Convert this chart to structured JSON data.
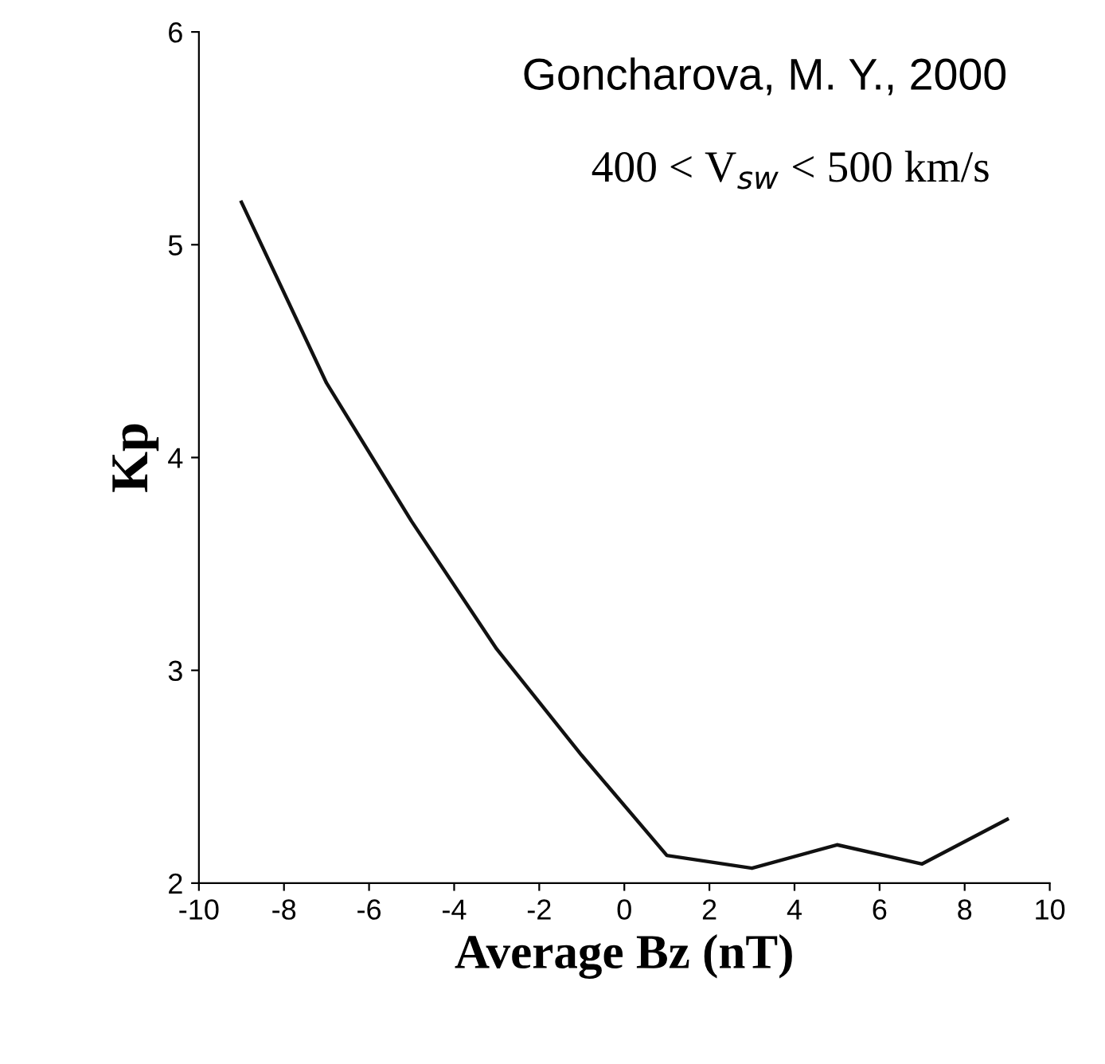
{
  "chart_data": {
    "type": "line",
    "xlabel": "Average Bz (nT)",
    "ylabel": "Kp",
    "x": [
      -9,
      -7,
      -5,
      -3,
      -1,
      1,
      3,
      5,
      7,
      9
    ],
    "series": [
      {
        "color": "#111111",
        "values": [
          5.2,
          4.35,
          3.7,
          3.1,
          2.6,
          2.13,
          2.07,
          2.18,
          2.09,
          2.3
        ]
      }
    ],
    "xlim": [
      -10,
      10
    ],
    "ylim": [
      2,
      6
    ],
    "xticks": [
      -10,
      -8,
      -6,
      -4,
      -2,
      0,
      2,
      4,
      6,
      8,
      10
    ],
    "yticks": [
      2,
      3,
      4,
      5,
      6
    ],
    "annotations": [
      "Goncharova, M. Y., 2000",
      "400 < V$_{sw}$ < 500 km/s"
    ],
    "marker": "none",
    "line_style": "solid",
    "grid": false,
    "legend": false
  }
}
